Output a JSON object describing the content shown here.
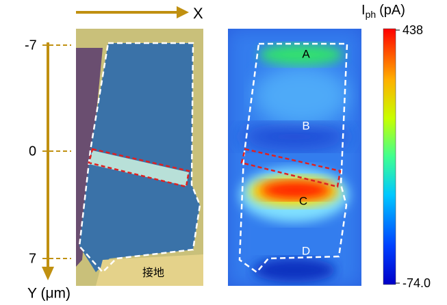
{
  "x_axis": {
    "label": "X"
  },
  "y_axis": {
    "label": "Y (μm)",
    "ticks": [
      "-7",
      "0",
      "7"
    ]
  },
  "optical_image": {
    "ground_label": "接地"
  },
  "photocurrent_map": {
    "regions": [
      "A",
      "B",
      "C",
      "D"
    ]
  },
  "colorbar": {
    "label": {
      "symbol": "I",
      "subscript": "ph",
      "unit": "(pA)"
    },
    "max": "438",
    "min": "-74.0"
  }
}
